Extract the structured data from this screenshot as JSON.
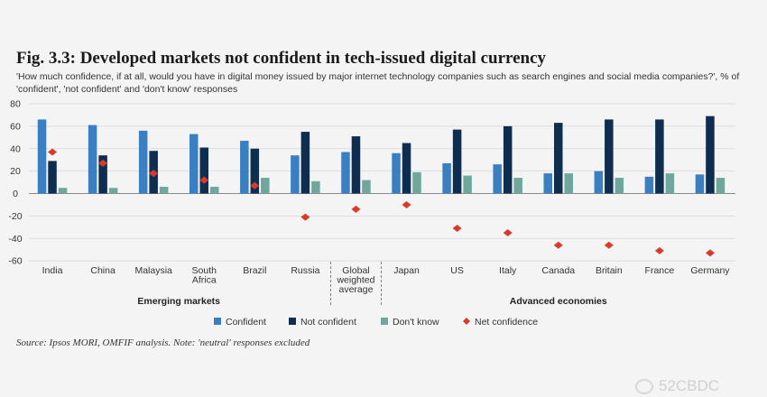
{
  "header": {
    "title": "Fig. 3.3: Developed markets not confident in tech-issued digital currency",
    "subtitle": "'How much confidence, if at all, would you have in digital money issued by major internet technology companies such as search engines and social media companies?', % of 'confident', 'not confident' and 'don't know' responses"
  },
  "footer": {
    "source": "Source: Ipsos MORI, OMFIF analysis. Note: 'neutral' responses excluded",
    "watermark": "52CBDC"
  },
  "colors": {
    "confident": "#3a7fc1",
    "not_confident": "#0f2d4e",
    "dont_know": "#6fa79c",
    "net_confidence": "#d93a2b",
    "grid": "#d6d6d6",
    "axis": "#555555"
  },
  "chart_data": {
    "type": "bar",
    "categories": [
      "India",
      "China",
      "Malaysia",
      "South Africa",
      "Brazil",
      "Russia",
      "Global weighted average",
      "Japan",
      "US",
      "Italy",
      "Canada",
      "Britain",
      "France",
      "Germany"
    ],
    "category_lines": [
      [
        "India"
      ],
      [
        "China"
      ],
      [
        "Malaysia"
      ],
      [
        "South",
        "Africa"
      ],
      [
        "Brazil"
      ],
      [
        "Russia"
      ],
      [
        "Global",
        "weighted",
        "average"
      ],
      [
        "Japan"
      ],
      [
        "US"
      ],
      [
        "Italy"
      ],
      [
        "Canada"
      ],
      [
        "Britain"
      ],
      [
        "France"
      ],
      [
        "Germany"
      ]
    ],
    "series": [
      {
        "name": "Confident",
        "kind": "bar",
        "values": [
          66,
          61,
          56,
          53,
          47,
          34,
          37,
          36,
          27,
          26,
          18,
          20,
          15,
          17
        ]
      },
      {
        "name": "Not confident",
        "kind": "bar",
        "values": [
          29,
          34,
          38,
          41,
          40,
          55,
          51,
          45,
          57,
          60,
          63,
          66,
          66,
          69
        ]
      },
      {
        "name": "Don't know",
        "kind": "bar",
        "values": [
          5,
          5,
          6,
          6,
          14,
          11,
          12,
          19,
          16,
          14,
          18,
          14,
          18,
          14
        ]
      },
      {
        "name": "Net confidence",
        "kind": "marker",
        "values": [
          37,
          27,
          18,
          12,
          7,
          -21,
          -14,
          -10,
          -31,
          -35,
          -46,
          -46,
          -51,
          -53
        ]
      }
    ],
    "ylim": [
      -60,
      80
    ],
    "yticks": [
      -60,
      -40,
      -20,
      0,
      20,
      40,
      60,
      80
    ],
    "groups": [
      {
        "label": "Emerging markets",
        "from": 0,
        "to": 5
      },
      {
        "label": "Advanced economies",
        "from": 7,
        "to": 13
      }
    ],
    "separators_after": [
      5,
      6
    ],
    "legend_position": "bottom",
    "grid": true
  }
}
